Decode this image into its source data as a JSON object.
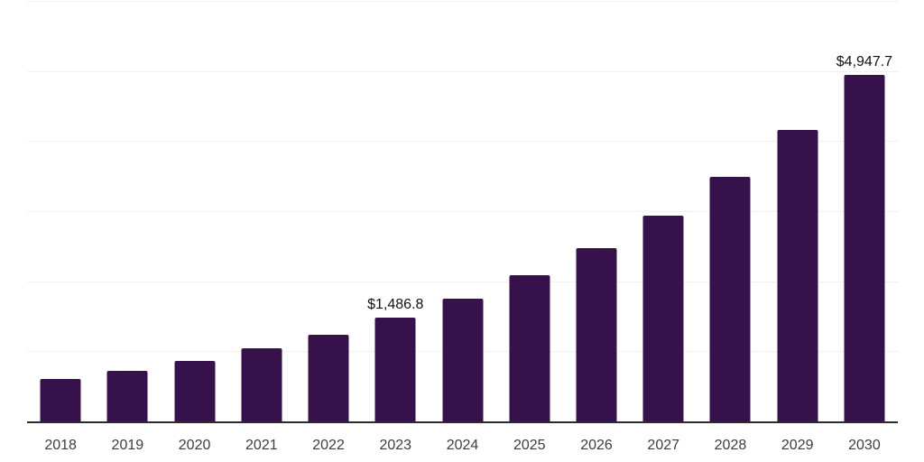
{
  "chart_data": {
    "type": "bar",
    "title": "",
    "xlabel": "",
    "ylabel": "",
    "categories": [
      "2018",
      "2019",
      "2020",
      "2021",
      "2022",
      "2023",
      "2024",
      "2025",
      "2026",
      "2027",
      "2028",
      "2029",
      "2030"
    ],
    "values": [
      610,
      718,
      860,
      1040,
      1232,
      1486.8,
      1754,
      2082,
      2468,
      2942,
      3484,
      4164,
      4947.7
    ],
    "labeled_points": [
      {
        "category": "2023",
        "label": "$1,486.8"
      },
      {
        "category": "2030",
        "label": "$4,947.7"
      }
    ],
    "ylim": [
      0,
      6000
    ],
    "gridline_interval": 1000,
    "grid": "horizontal",
    "y_tick_labels_shown": false,
    "legend": "none",
    "colors": {
      "bar": "#36114c",
      "gridline": "#f2f2f2",
      "axis_line": "#2b2b2b",
      "tick_label": "#3d3d3d",
      "value_label": "#111111",
      "background": "#ffffff"
    }
  }
}
